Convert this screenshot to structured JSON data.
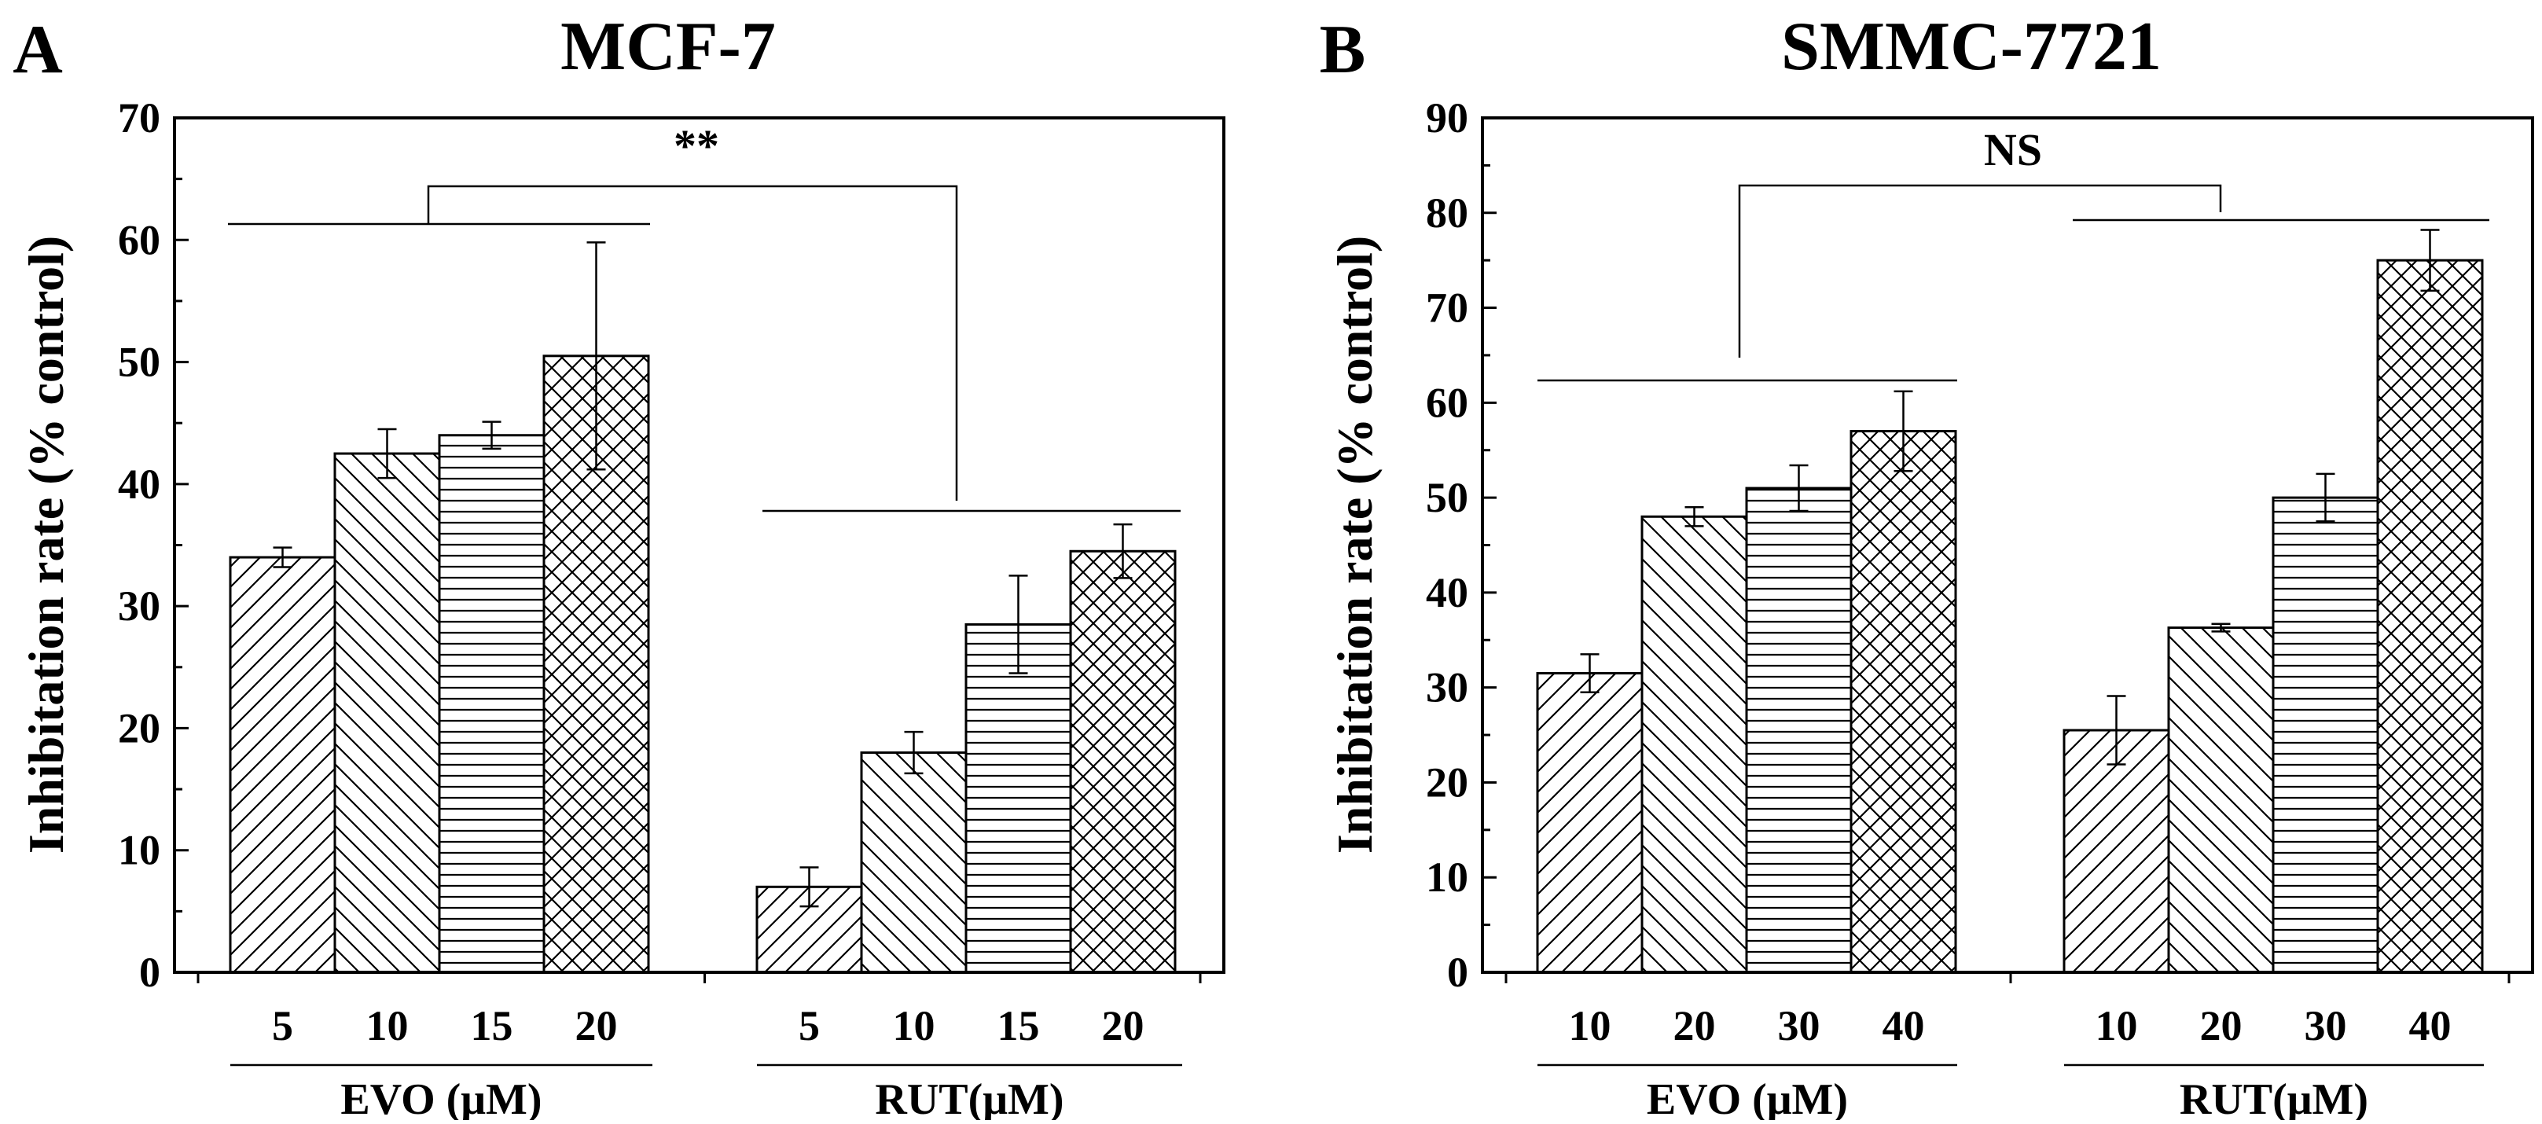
{
  "chart_data": [
    {
      "type": "bar",
      "panel_letter": "A",
      "title": "MCF-7",
      "ylabel": "Inhibitation rate (% control)",
      "ylim": [
        0,
        70
      ],
      "yticks": [
        "0",
        "10",
        "20",
        "30",
        "40",
        "50",
        "60",
        "70"
      ],
      "significance": "**",
      "groups": [
        {
          "label": "EVO (μM)",
          "categories": [
            "5",
            "10",
            "15",
            "20"
          ],
          "values": [
            34,
            42.5,
            44,
            50.5
          ],
          "errors": [
            0.8,
            2.0,
            1.1,
            9.3
          ],
          "patterns": [
            "diag-fwd",
            "diag-back",
            "horizontal",
            "crosshatch"
          ]
        },
        {
          "label": "RUT(μM)",
          "categories": [
            "5",
            "10",
            "15",
            "20"
          ],
          "values": [
            7,
            18,
            28.5,
            34.5
          ],
          "errors": [
            1.6,
            1.7,
            4.0,
            2.2
          ],
          "patterns": [
            "diag-fwd",
            "diag-back",
            "horizontal",
            "crosshatch"
          ]
        }
      ]
    },
    {
      "type": "bar",
      "panel_letter": "B",
      "title": "SMMC-7721",
      "ylabel": "Inhibitation rate (% control)",
      "ylim": [
        0,
        90
      ],
      "yticks": [
        "0",
        "10",
        "20",
        "30",
        "40",
        "50",
        "60",
        "70",
        "80",
        "90"
      ],
      "significance": "NS",
      "groups": [
        {
          "label": "EVO (μM)",
          "categories": [
            "10",
            "20",
            "30",
            "40"
          ],
          "values": [
            31.5,
            48,
            51,
            57
          ],
          "errors": [
            2.0,
            1.0,
            2.4,
            4.2
          ],
          "patterns": [
            "diag-fwd",
            "diag-back",
            "horizontal",
            "crosshatch"
          ]
        },
        {
          "label": "RUT(μM)",
          "categories": [
            "10",
            "20",
            "30",
            "40"
          ],
          "values": [
            25.5,
            36.3,
            50,
            75
          ],
          "errors": [
            3.6,
            0.4,
            2.5,
            3.2
          ],
          "patterns": [
            "diag-fwd",
            "diag-back",
            "horizontal",
            "crosshatch"
          ]
        }
      ]
    }
  ]
}
